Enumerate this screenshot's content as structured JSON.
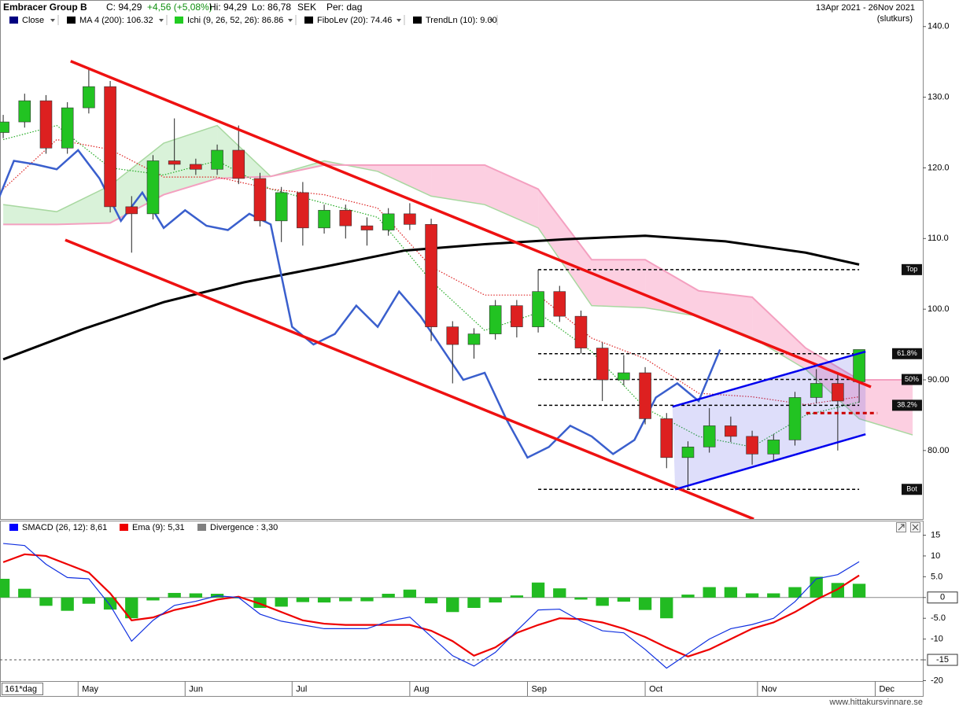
{
  "header": {
    "name": "Embracer Group B",
    "close": "C: 94,29",
    "change": "+4,56 (+5,08%)",
    "high": "Hi: 94,29",
    "low": "Lo: 86,78",
    "currency": "SEK",
    "period": "Per: dag",
    "range": "13Apr 2021 - 26Nov 2021",
    "price_type": "(slutkurs)"
  },
  "footer": {
    "period_count": "161*dag",
    "site": "www.hittakursvinnare.se"
  },
  "chart_data": {
    "type": "candlestick",
    "legend": [
      {
        "label": "Close",
        "color": "#000080"
      },
      {
        "label": "MA 4 (200): 106.32",
        "color": "#000000"
      },
      {
        "label": "Ichi (9, 26, 52, 26): 86.86",
        "color": "#22cc22"
      },
      {
        "label": "FiboLev (20): 74.46",
        "color": "#000000"
      },
      {
        "label": "TrendLn (10): 9.00",
        "color": "#000000"
      }
    ],
    "x": [
      0,
      4,
      8,
      12,
      16,
      20,
      24,
      28,
      32,
      36,
      40,
      44,
      48,
      52,
      56,
      60,
      64,
      68,
      72,
      76,
      80,
      84,
      88,
      92,
      96,
      100,
      104,
      108,
      112,
      116,
      120,
      124,
      128,
      132,
      136,
      140,
      144,
      148,
      152,
      156,
      160
    ],
    "candles": [
      [
        125.0,
        127.5,
        124.2,
        126.5
      ],
      [
        126.5,
        130.5,
        125.7,
        129.5
      ],
      [
        129.5,
        130.3,
        122.0,
        122.8
      ],
      [
        122.8,
        129.3,
        122.0,
        128.5
      ],
      [
        128.5,
        134.0,
        127.7,
        131.5
      ],
      [
        131.5,
        132.3,
        113.7,
        114.5
      ],
      [
        114.5,
        116.0,
        108.0,
        113.5
      ],
      [
        113.5,
        121.8,
        112.7,
        121.0
      ],
      [
        121.0,
        127.0,
        119.7,
        120.5
      ],
      [
        120.5,
        121.3,
        119.0,
        119.8
      ],
      [
        119.8,
        123.3,
        119.0,
        122.5
      ],
      [
        122.5,
        126.0,
        117.7,
        118.5
      ],
      [
        118.5,
        119.3,
        111.7,
        112.5
      ],
      [
        112.5,
        117.3,
        109.5,
        116.5
      ],
      [
        116.5,
        118.0,
        109.0,
        111.5
      ],
      [
        111.5,
        114.8,
        110.7,
        114.0
      ],
      [
        114.0,
        114.8,
        110.0,
        111.8
      ],
      [
        111.8,
        113.0,
        109.0,
        111.2
      ],
      [
        111.2,
        114.3,
        110.4,
        113.5
      ],
      [
        113.5,
        115.0,
        111.2,
        112.0
      ],
      [
        112.0,
        112.8,
        95.5,
        97.5
      ],
      [
        97.5,
        98.3,
        89.5,
        95.0
      ],
      [
        95.0,
        97.3,
        93.0,
        96.5
      ],
      [
        96.5,
        101.3,
        95.7,
        100.5
      ],
      [
        100.5,
        101.3,
        96.0,
        97.5
      ],
      [
        97.5,
        105.6,
        96.7,
        102.5
      ],
      [
        102.5,
        103.3,
        98.2,
        99.0
      ],
      [
        99.0,
        99.8,
        93.7,
        94.5
      ],
      [
        94.5,
        95.3,
        87.0,
        90.0
      ],
      [
        90.0,
        93.5,
        89.2,
        91.0
      ],
      [
        91.0,
        91.8,
        83.7,
        84.5
      ],
      [
        84.5,
        85.3,
        77.5,
        79.0
      ],
      [
        79.0,
        81.3,
        74.5,
        80.5
      ],
      [
        80.5,
        86.0,
        79.7,
        83.5
      ],
      [
        83.5,
        84.8,
        81.2,
        82.0
      ],
      [
        82.0,
        82.8,
        78.0,
        79.5
      ],
      [
        79.5,
        82.3,
        78.5,
        81.5
      ],
      [
        81.5,
        88.3,
        80.7,
        87.5
      ],
      [
        87.5,
        91.5,
        86.7,
        89.5
      ],
      [
        89.5,
        91.0,
        80.0,
        87.0
      ],
      [
        89.73,
        94.29,
        86.78,
        94.29
      ]
    ],
    "up_color": "#22c322",
    "down_color": "#dd2020",
    "close_line": {
      "color": "#3a5fcd",
      "shift": 26
    },
    "xlim": [
      -0.6,
      171.9
    ],
    "ylim": [
      70.3,
      142.2
    ],
    "xticks": [
      {
        "value": 14,
        "label": "May"
      },
      {
        "value": 34,
        "label": "Jun"
      },
      {
        "value": 54,
        "label": "Jul"
      },
      {
        "value": 76,
        "label": "Aug"
      },
      {
        "value": 98,
        "label": "Sep"
      },
      {
        "value": 120,
        "label": "Oct"
      },
      {
        "value": 141,
        "label": "Nov"
      },
      {
        "value": 163,
        "label": "Dec"
      }
    ],
    "yticks": [
      {
        "value": 140,
        "label": "140.0"
      },
      {
        "value": 130,
        "label": "130.0"
      },
      {
        "value": 120,
        "label": "120.0"
      },
      {
        "value": 110,
        "label": "110.0"
      },
      {
        "value": 100,
        "label": "100.0"
      },
      {
        "value": 90,
        "label": "90.00"
      },
      {
        "value": 80,
        "label": "80.00"
      }
    ],
    "ma": {
      "color": "#000000",
      "x": [
        0,
        15,
        30,
        45,
        60,
        75,
        90,
        105,
        120,
        135,
        150,
        160
      ],
      "values": [
        92.9,
        97.2,
        101.0,
        103.8,
        106.0,
        108.3,
        109.2,
        109.9,
        110.4,
        109.6,
        108.0,
        106.32
      ]
    },
    "ichimoku": {
      "x": [
        0,
        10,
        20,
        30,
        40,
        50,
        60,
        70,
        80,
        90,
        100,
        110,
        120,
        130,
        140,
        150,
        160,
        170
      ],
      "span_a": [
        114.8,
        113.8,
        117.5,
        123.5,
        126.0,
        118.8,
        121.0,
        119.5,
        116.0,
        114.8,
        111.5,
        100.5,
        100.2,
        99.0,
        96.0,
        91.5,
        84.5,
        82.2
      ],
      "span_b": [
        112.0,
        112.0,
        112.2,
        116.2,
        118.5,
        118.8,
        120.4,
        120.4,
        120.4,
        120.4,
        117.0,
        107.0,
        107.0,
        102.6,
        101.7,
        94.5,
        90.0,
        90.0
      ],
      "tenkan": [
        124.0,
        126.0,
        120.0,
        119.0,
        121.0,
        117.0,
        115.0,
        113.0,
        104.0,
        97.0,
        99.5,
        94.0,
        86.0,
        82.0,
        80.5,
        85.0,
        86.86,
        null
      ],
      "kijun": [
        117.0,
        124.0,
        122.6,
        118.7,
        118.7,
        117.0,
        116.2,
        114.3,
        106.0,
        102.0,
        102.0,
        95.9,
        93.0,
        88.1,
        87.6,
        86.5,
        87.6,
        null
      ],
      "a_color": "#a8d8a0",
      "b_color": "#f4a0c0",
      "tenkan_color": "#22aa22",
      "kijun_color": "#dd2222"
    },
    "fib": {
      "x": [
        100,
        160
      ],
      "levels": [
        {
          "value": 105.6,
          "label": "Top"
        },
        {
          "value": 93.7,
          "label": "61.8%"
        },
        {
          "value": 90.05,
          "label": "50%"
        },
        {
          "value": 86.4,
          "label": "38.2%"
        },
        {
          "value": 74.5,
          "label": "Bot"
        }
      ]
    },
    "trendlines": [
      {
        "x": [
          12.6,
          162.2
        ],
        "y": [
          135.1,
          89.0
        ],
        "color": "#ee1111"
      },
      {
        "x": [
          11.6,
          140.3
        ],
        "y": [
          109.8,
          70.3
        ],
        "color": "#ee1111"
      },
      {
        "x": [
          125.1,
          161.2
        ],
        "y": [
          86.2,
          94.0
        ],
        "color": "#0000ee"
      },
      {
        "x": [
          125.6,
          161.2
        ],
        "y": [
          74.5,
          82.3
        ],
        "color": "#0000ee"
      },
      {
        "x": [
          150.1,
          163.4
        ],
        "y": [
          85.3,
          85.3
        ],
        "color": "#cc0000",
        "dashed": true
      }
    ],
    "shade_between": [
      2,
      3
    ],
    "macd": {
      "legend": [
        {
          "label": "SMACD (26, 12): 8,61",
          "color": "#0000ff"
        },
        {
          "label": "Ema (9): 5,31",
          "color": "#ee0000"
        },
        {
          "label": "Divergence : 3,30",
          "color": "#808080"
        }
      ],
      "macd": [
        13,
        12.5,
        8,
        4.8,
        4.5,
        -1.9,
        -10.5,
        -5.5,
        -1.9,
        -0.9,
        0.4,
        0,
        -4,
        -5.7,
        -6.6,
        -7.5,
        -7.5,
        -7.5,
        -5.7,
        -4.7,
        -9.4,
        -14,
        -16.5,
        -13.2,
        -8,
        -3,
        -2.8,
        -5.7,
        -8,
        -8.5,
        -12.5,
        -17,
        -13.5,
        -10,
        -7.5,
        -6.5,
        -5,
        -1,
        4.5,
        5.5,
        8.61
      ],
      "signal": [
        8.5,
        10.4,
        10,
        8,
        6,
        1,
        -5.5,
        -4.8,
        -3,
        -1.9,
        -0.5,
        0.2,
        -1.5,
        -3.5,
        -5.5,
        -6.3,
        -6.6,
        -6.6,
        -6.6,
        -6.6,
        -8,
        -10.5,
        -14,
        -12,
        -8.5,
        -6.6,
        -5,
        -5.2,
        -6,
        -7.5,
        -9.5,
        -12,
        -14.2,
        -12.5,
        -10,
        -7.5,
        -6,
        -3.5,
        -0.5,
        2,
        5.31
      ],
      "divergence": [
        4.5,
        2.1,
        -2,
        -3.2,
        -1.5,
        -2.9,
        -5,
        -0.7,
        1.1,
        1.0,
        0.9,
        -0.2,
        -2.5,
        -2.2,
        -1.1,
        -1.2,
        -0.9,
        -0.9,
        0.9,
        1.9,
        -1.4,
        -3.5,
        -2.5,
        -1.2,
        0.5,
        3.6,
        2.2,
        -0.5,
        -2,
        -1,
        -3,
        -5,
        0.7,
        2.5,
        2.5,
        1,
        1,
        2.5,
        5,
        3.5,
        3.3
      ],
      "macd_color": "#1030e0",
      "signal_color": "#ee0000",
      "bar_color": "#22bb22",
      "ylim": [
        -20.1,
        18.5
      ],
      "yticks": [
        15,
        10,
        {
          "value": 5,
          "label": "5.0"
        },
        0,
        {
          "value": -5,
          "label": "-5.0"
        },
        -10,
        -15,
        -20
      ],
      "hlines": [
        {
          "value": 0,
          "dashed": false
        },
        {
          "value": -15,
          "dashed": true
        }
      ]
    }
  }
}
